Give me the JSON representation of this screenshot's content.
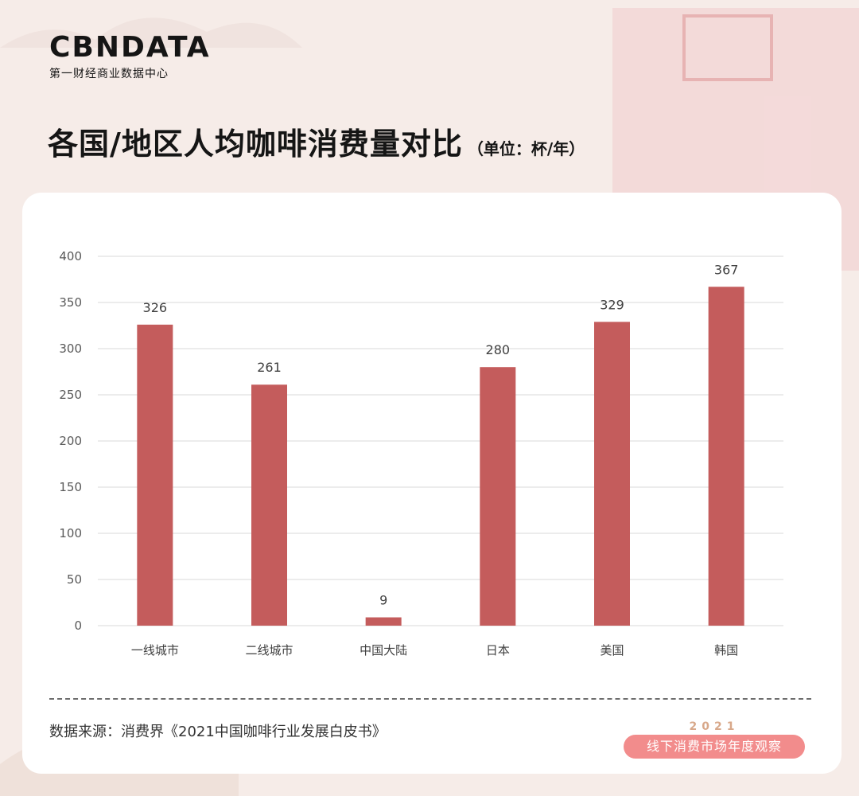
{
  "brand": {
    "logo": "CBNDATA",
    "tagline": "第一财经商业数据中心"
  },
  "header": {
    "title": "各国/地区人均咖啡消费量对比",
    "unit_note": "（单位：杯/年）"
  },
  "colors": {
    "bar": "#c45c5c",
    "grid": "#d9d9d9",
    "background": "#f6ece8",
    "card": "#ffffff",
    "badge": "#f28c8c"
  },
  "chart_data": {
    "type": "bar",
    "categories": [
      "一线城市",
      "二线城市",
      "中国大陆",
      "日本",
      "美国",
      "韩国"
    ],
    "values": [
      326,
      261,
      9,
      280,
      329,
      367
    ],
    "data_labels": [
      "326",
      "261",
      "9",
      "280",
      "329",
      "367"
    ],
    "y_ticks": [
      "0",
      "50",
      "100",
      "150",
      "200",
      "250",
      "300",
      "350",
      "400"
    ],
    "ylim": [
      0,
      400
    ],
    "grid": true,
    "title": "",
    "xlabel": "",
    "ylabel": ""
  },
  "footer": {
    "source": "数据来源：消费界《2021中国咖啡行业发展白皮书》",
    "badge_year": "2021",
    "badge_text": "线下消费市场年度观察"
  }
}
